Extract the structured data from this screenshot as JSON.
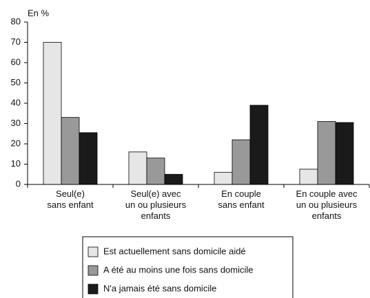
{
  "chart_data": {
    "type": "bar",
    "y_label": "En %",
    "categories": [
      "Seul(e)\nsans enfant",
      "Seul(e) avec\nun ou plusieurs\nenfants",
      "En couple\nsans enfant",
      "En couple avec\nun ou plusieurs\nenfants"
    ],
    "series": [
      {
        "name": "Est actuellement sans domicile aidé",
        "color": "#e6e6e6",
        "values": [
          70,
          16,
          6,
          7.5
        ]
      },
      {
        "name": "A été au moins une fois sans domicile",
        "color": "#999999",
        "values": [
          33,
          13,
          22,
          31
        ]
      },
      {
        "name": "N'a jamais été sans domicile",
        "color": "#1a1a1a",
        "values": [
          25.5,
          5,
          39,
          30.5
        ]
      }
    ],
    "ylim": [
      0,
      80
    ],
    "yticks": [
      0,
      10,
      20,
      30,
      40,
      50,
      60,
      70,
      80
    ],
    "grid": false,
    "legend": "bottom"
  }
}
